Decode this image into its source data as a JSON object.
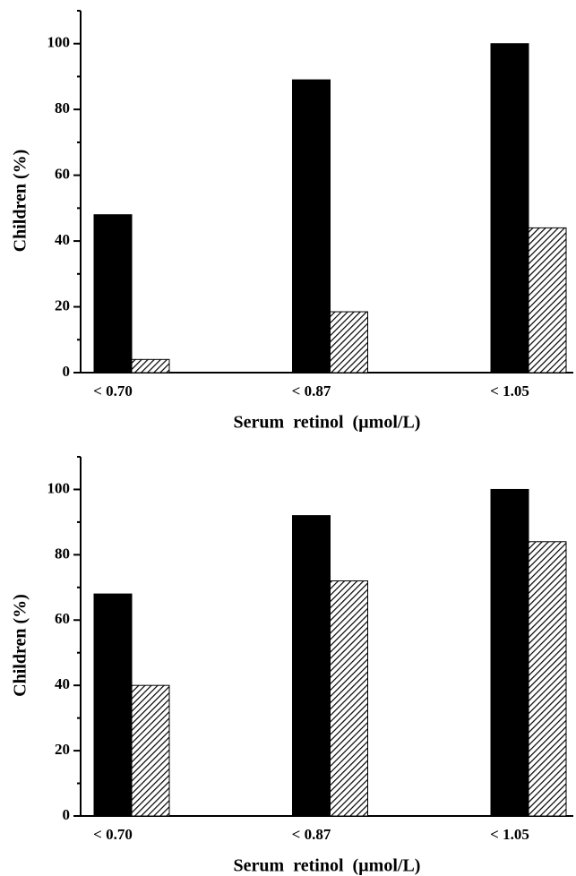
{
  "chart_data": [
    {
      "type": "bar",
      "x_label": "Serum  retinol  (µmol/L)",
      "y_label": "Children (%)",
      "categories": [
        "< 0.70",
        "< 0.87",
        "< 1.05"
      ],
      "series": [
        {
          "color": "#000000",
          "hatch": false,
          "values": [
            48,
            89,
            100
          ]
        },
        {
          "color": "#000000",
          "hatch": true,
          "values": [
            4,
            18.5,
            44
          ]
        }
      ],
      "ylim": [
        0,
        110
      ],
      "yticks": [
        0,
        20,
        40,
        60,
        80,
        100
      ],
      "minor_yticks": [
        10,
        30,
        50,
        70,
        90,
        110
      ]
    },
    {
      "type": "bar",
      "x_label": "Serum  retinol  (µmol/L)",
      "y_label": "Children (%)",
      "categories": [
        "< 0.70",
        "< 0.87",
        "< 1.05"
      ],
      "series": [
        {
          "color": "#000000",
          "hatch": false,
          "values": [
            68,
            92,
            100
          ]
        },
        {
          "color": "#000000",
          "hatch": true,
          "values": [
            40,
            72,
            84
          ]
        }
      ],
      "ylim": [
        0,
        110
      ],
      "yticks": [
        0,
        20,
        40,
        60,
        80,
        100
      ],
      "minor_yticks": [
        10,
        30,
        50,
        70,
        90,
        110
      ]
    }
  ]
}
